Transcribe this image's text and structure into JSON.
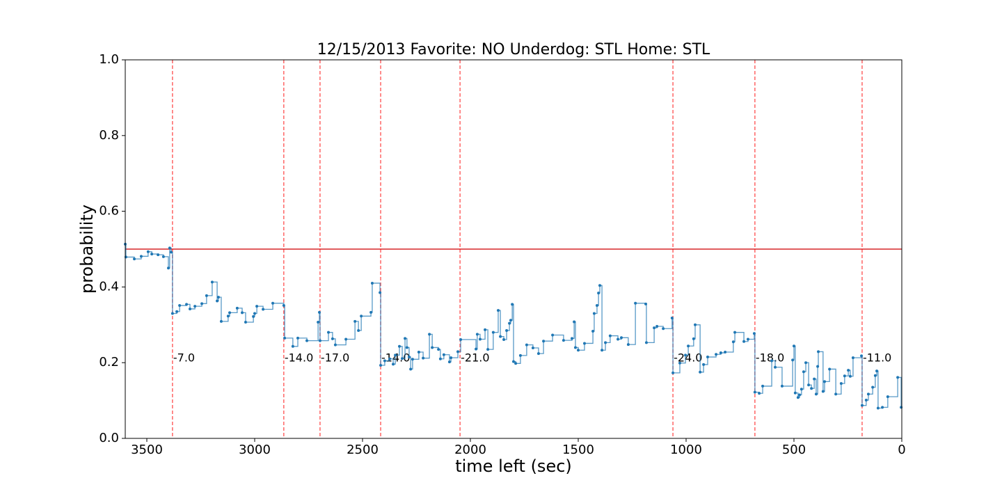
{
  "chart_data": {
    "type": "line",
    "title": "12/15/2013 Favorite: NO Underdog: STL Home: STL",
    "xlabel": "time left (sec)",
    "ylabel": "probability",
    "x": [
      3600,
      3597,
      3558,
      3526,
      3494,
      3477,
      3448,
      3423,
      3400,
      3394,
      3387,
      3381,
      3361,
      3348,
      3316,
      3300,
      3277,
      3245,
      3223,
      3197,
      3174,
      3168,
      3155,
      3123,
      3116,
      3081,
      3058,
      3042,
      3006,
      3000,
      2990,
      2961,
      2916,
      2865,
      2861,
      2823,
      2800,
      2758,
      2706,
      2700,
      2697,
      2658,
      2639,
      2626,
      2577,
      2535,
      2519,
      2506,
      2461,
      2455,
      2419,
      2416,
      2397,
      2374,
      2358,
      2348,
      2329,
      2316,
      2303,
      2294,
      2284,
      2277,
      2268,
      2239,
      2219,
      2190,
      2177,
      2148,
      2139,
      2123,
      2097,
      2090,
      2058,
      2045,
      1974,
      1968,
      1955,
      1932,
      1919,
      1894,
      1871,
      1861,
      1845,
      1832,
      1819,
      1813,
      1806,
      1800,
      1790,
      1768,
      1739,
      1710,
      1684,
      1661,
      1619,
      1568,
      1529,
      1519,
      1513,
      1500,
      1471,
      1432,
      1426,
      1413,
      1406,
      1400,
      1390,
      1374,
      1352,
      1316,
      1300,
      1268,
      1235,
      1187,
      1184,
      1148,
      1135,
      1106,
      1065,
      1061,
      1029,
      1003,
      990,
      965,
      958,
      935,
      919,
      900,
      861,
      839,
      819,
      781,
      774,
      732,
      713,
      684,
      681,
      661,
      645,
      603,
      587,
      555,
      506,
      500,
      494,
      481,
      474,
      465,
      455,
      445,
      432,
      419,
      406,
      397,
      390,
      387,
      365,
      358,
      335,
      306,
      281,
      265,
      248,
      239,
      226,
      187,
      184,
      165,
      155,
      135,
      123,
      116,
      110,
      90,
      65,
      19,
      3
    ],
    "series": [
      {
        "color": "#1f77b4",
        "values": [
          0.513,
          0.479,
          0.474,
          0.481,
          0.493,
          0.487,
          0.485,
          0.48,
          0.45,
          0.503,
          0.492,
          0.33,
          0.335,
          0.351,
          0.354,
          0.342,
          0.349,
          0.356,
          0.377,
          0.413,
          0.363,
          0.373,
          0.309,
          0.323,
          0.332,
          0.344,
          0.332,
          0.307,
          0.322,
          0.33,
          0.349,
          0.341,
          0.357,
          0.351,
          0.265,
          0.243,
          0.265,
          0.258,
          0.307,
          0.333,
          0.258,
          0.28,
          0.263,
          0.247,
          0.262,
          0.309,
          0.285,
          0.323,
          0.333,
          0.41,
          0.385,
          0.193,
          0.205,
          0.21,
          0.196,
          0.22,
          0.243,
          0.211,
          0.264,
          0.24,
          0.215,
          0.183,
          0.209,
          0.228,
          0.212,
          0.275,
          0.24,
          0.235,
          0.21,
          0.221,
          0.202,
          0.213,
          0.229,
          0.261,
          0.236,
          0.275,
          0.262,
          0.287,
          0.235,
          0.28,
          0.338,
          0.269,
          0.261,
          0.285,
          0.304,
          0.312,
          0.354,
          0.203,
          0.198,
          0.219,
          0.247,
          0.239,
          0.224,
          0.257,
          0.273,
          0.259,
          0.264,
          0.308,
          0.24,
          0.233,
          0.251,
          0.283,
          0.33,
          0.351,
          0.384,
          0.404,
          0.233,
          0.253,
          0.271,
          0.262,
          0.266,
          0.248,
          0.357,
          0.355,
          0.253,
          0.292,
          0.296,
          0.29,
          0.318,
          0.173,
          0.199,
          0.22,
          0.244,
          0.263,
          0.3,
          0.175,
          0.195,
          0.215,
          0.222,
          0.226,
          0.228,
          0.255,
          0.28,
          0.256,
          0.262,
          0.277,
          0.122,
          0.119,
          0.138,
          0.205,
          0.188,
          0.138,
          0.207,
          0.244,
          0.12,
          0.108,
          0.115,
          0.13,
          0.176,
          0.2,
          0.141,
          0.132,
          0.157,
          0.117,
          0.19,
          0.229,
          0.124,
          0.15,
          0.183,
          0.117,
          0.145,
          0.165,
          0.18,
          0.164,
          0.213,
          0.218,
          0.087,
          0.101,
          0.117,
          0.135,
          0.166,
          0.178,
          0.08,
          0.082,
          0.11,
          0.161,
          0.082
        ]
      }
    ],
    "hline": {
      "value": 0.5,
      "color": "#d62728"
    },
    "vlines": {
      "color": "#ff0000",
      "x": [
        3381,
        2865,
        2697,
        2416,
        2048,
        1061,
        681,
        184
      ],
      "values": [
        -7,
        -14,
        -17,
        -14,
        -21,
        -24,
        -18,
        -11
      ],
      "value_labels": [
        "-7.0",
        "-14.0",
        "-17.0",
        "-14.0",
        "-21.0",
        "-24.0",
        "-18.0",
        "-11.0"
      ]
    },
    "xlim": [
      3600,
      0
    ],
    "xticks": [
      3500,
      3000,
      2500,
      2000,
      1500,
      1000,
      500,
      0
    ],
    "ylim": [
      0,
      1
    ],
    "yticks": [
      {
        "value": 0,
        "label": "0.0"
      },
      0.2,
      0.4,
      0.6,
      0.8,
      {
        "value": 1,
        "label": "1.0"
      }
    ]
  }
}
